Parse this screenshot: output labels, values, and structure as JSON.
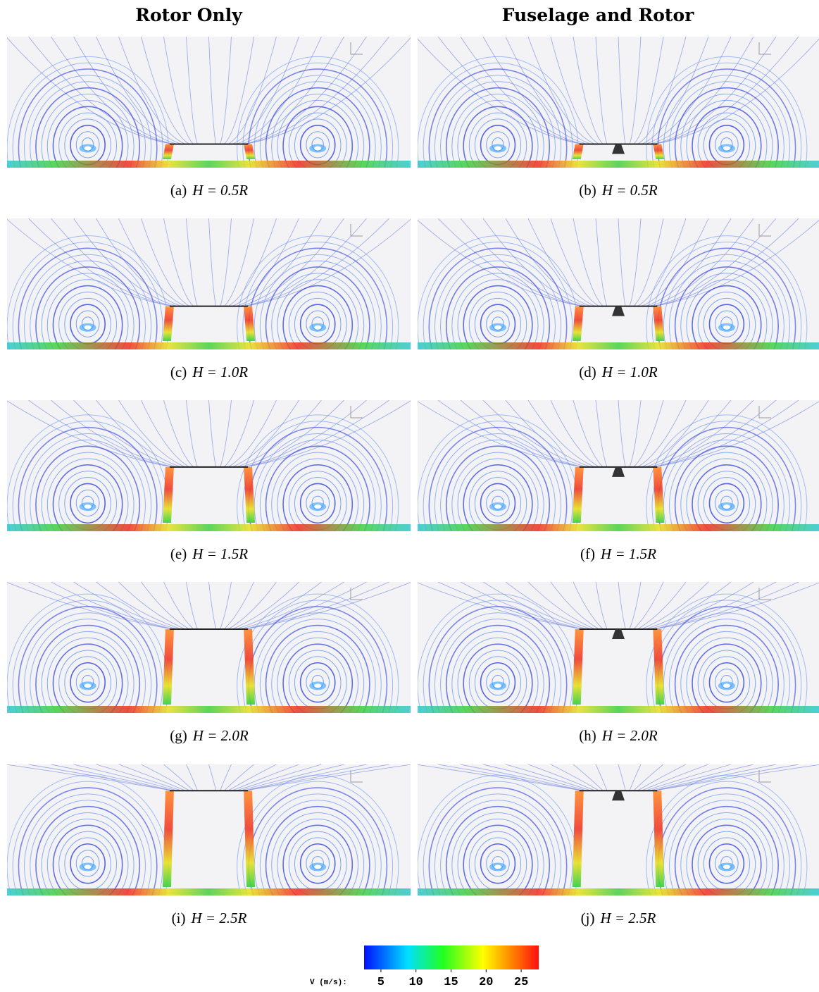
{
  "columns": [
    "Rotor Only",
    "Fuselage and Rotor"
  ],
  "panels": [
    {
      "tag": "(a)",
      "math": "H = 0.5R"
    },
    {
      "tag": "(b)",
      "math": "H = 0.5R"
    },
    {
      "tag": "(c)",
      "math": "H = 1.0R"
    },
    {
      "tag": "(d)",
      "math": "H = 1.0R"
    },
    {
      "tag": "(e)",
      "math": "H = 1.5R"
    },
    {
      "tag": "(f)",
      "math": "H = 1.5R"
    },
    {
      "tag": "(g)",
      "math": "H = 2.0R"
    },
    {
      "tag": "(h)",
      "math": "H = 2.0R"
    },
    {
      "tag": "(i)",
      "math": "H = 2.5R"
    },
    {
      "tag": "(j)",
      "math": "H = 2.5R"
    }
  ],
  "colorbar": {
    "label": "V (m/s):",
    "range": [
      2.6,
      27.5
    ],
    "ticks": [
      5,
      10,
      15,
      20,
      25
    ]
  }
}
